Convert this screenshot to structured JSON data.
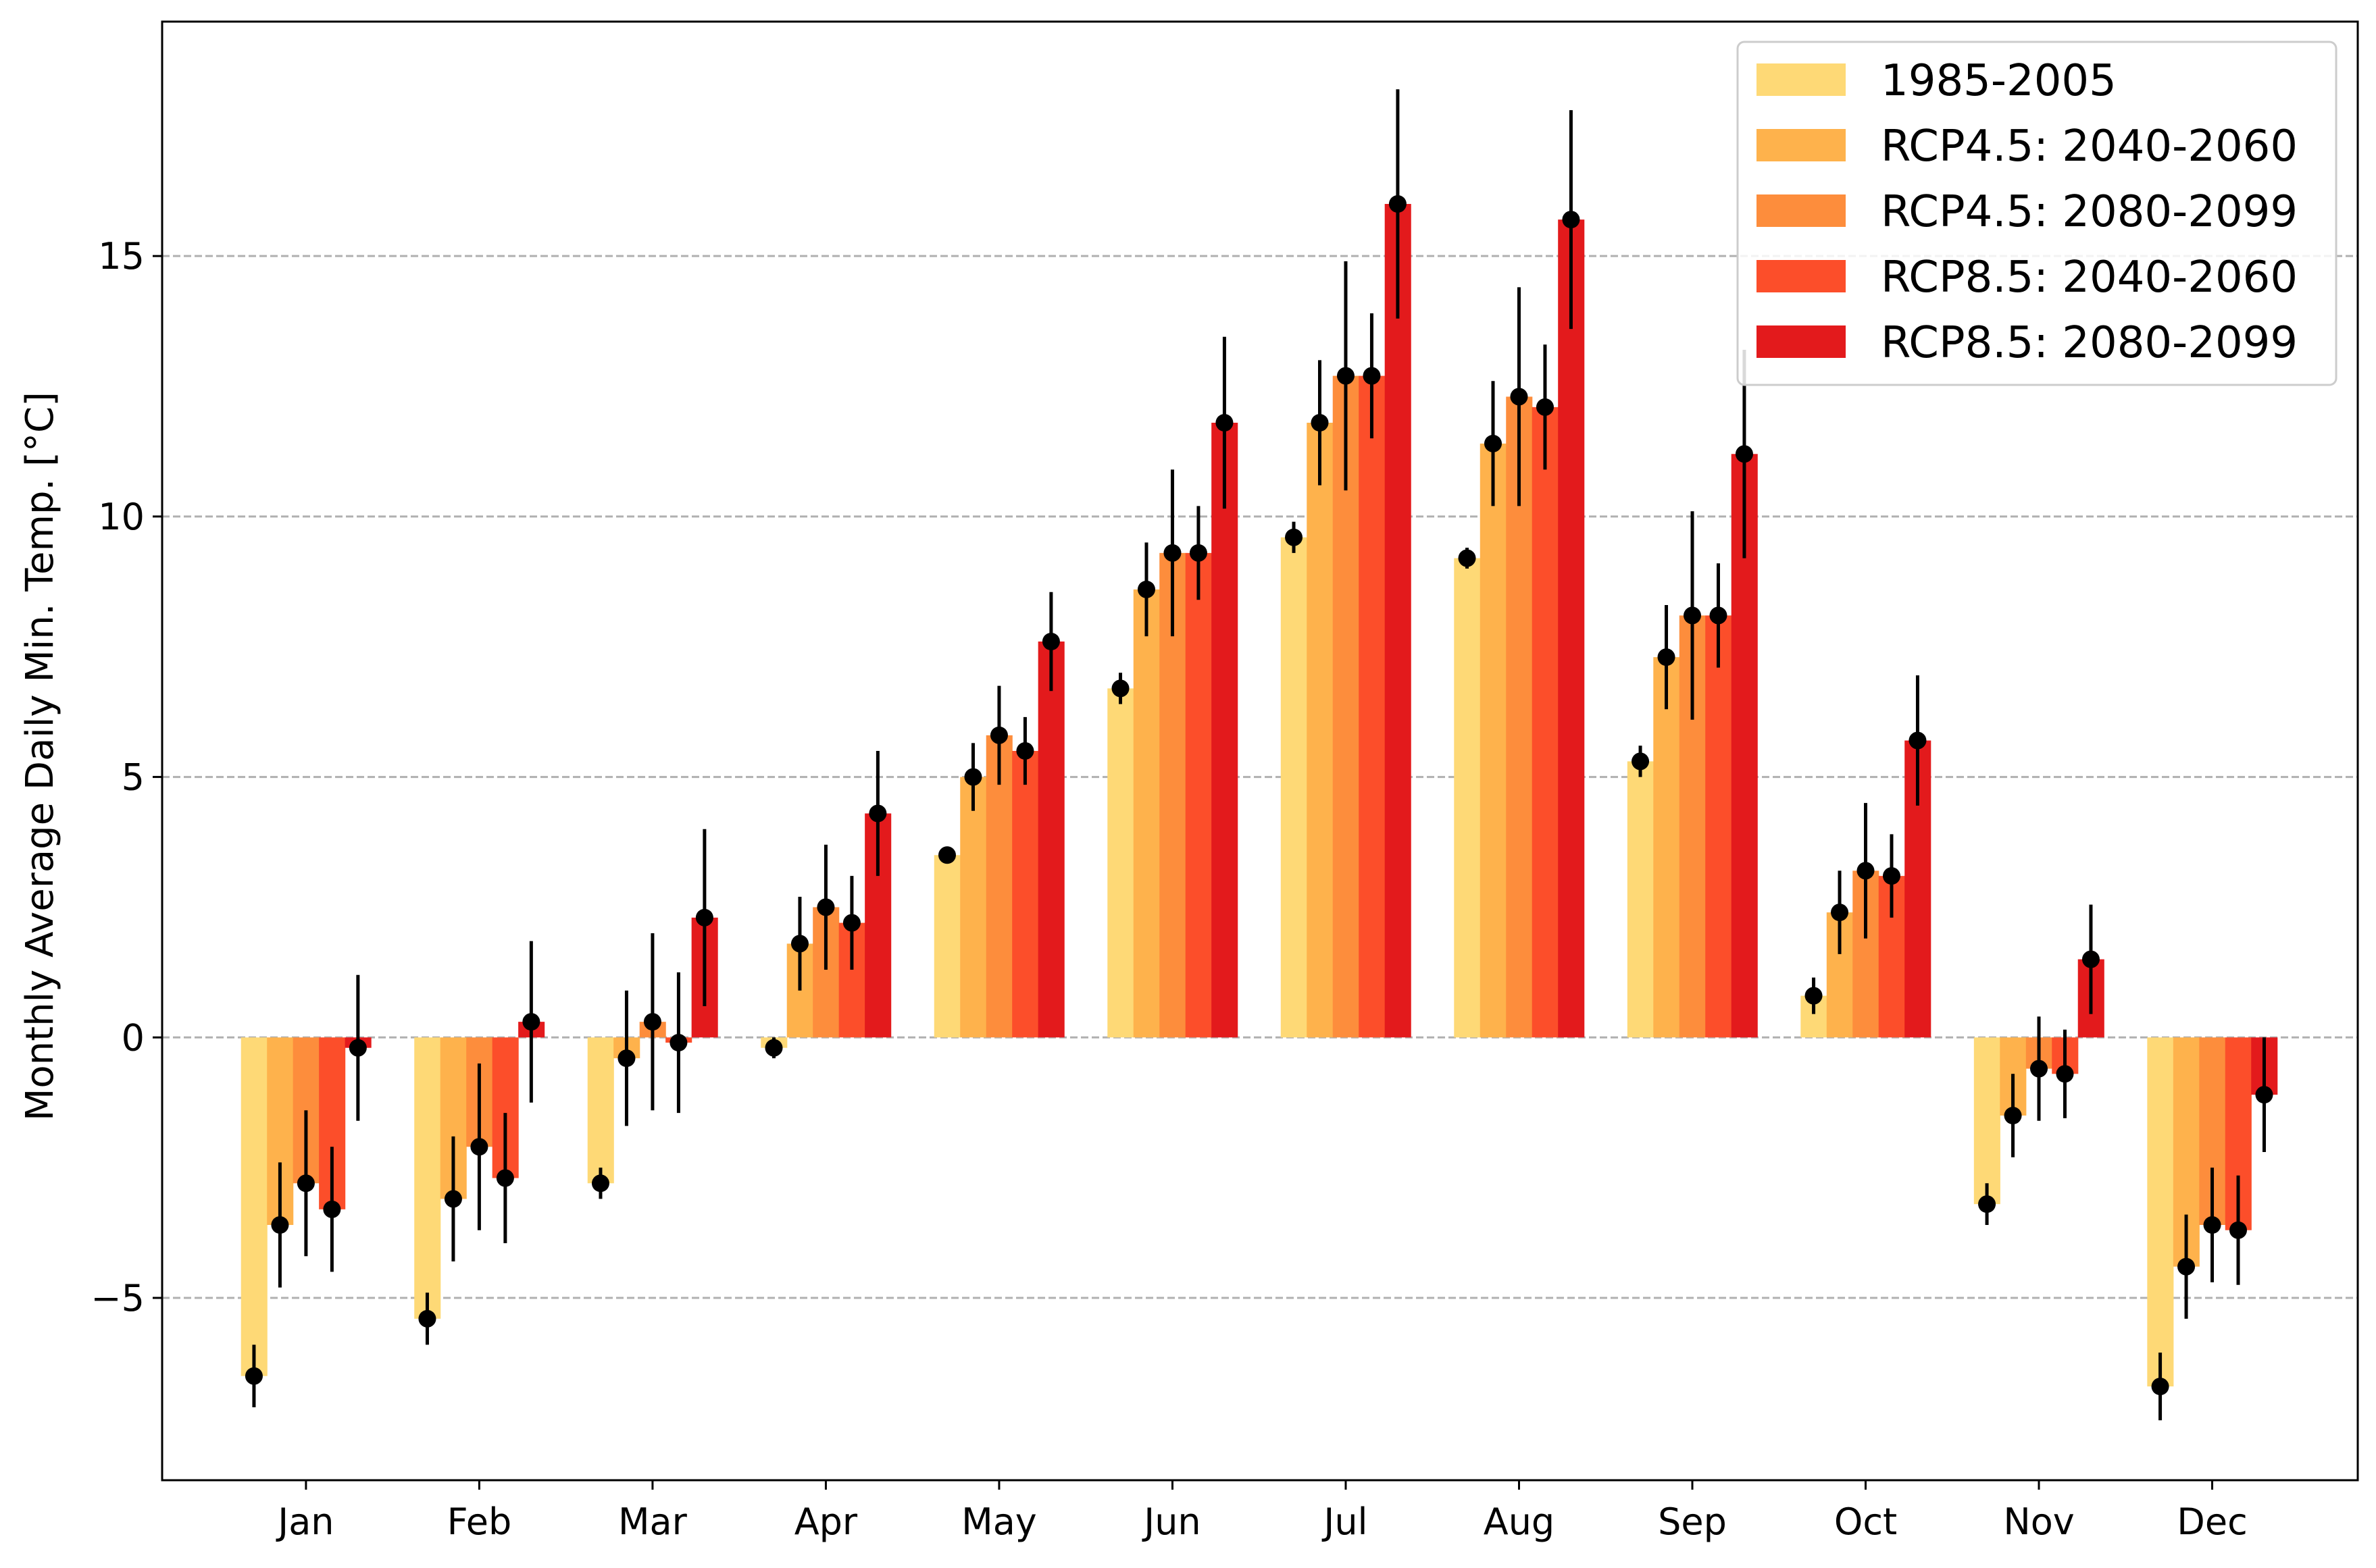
{
  "chart_data": {
    "type": "bar",
    "title": "",
    "xlabel": "",
    "ylabel": "Monthly Average Daily Min. Temp. [°C]",
    "categories": [
      "Jan",
      "Feb",
      "Mar",
      "Apr",
      "May",
      "Jun",
      "Jul",
      "Aug",
      "Sep",
      "Oct",
      "Nov",
      "Dec"
    ],
    "ylim": [
      -8.5,
      19.5
    ],
    "yticks": [
      {
        "value": -5,
        "label": "−5"
      },
      {
        "value": 0,
        "label": "0"
      },
      {
        "value": 5,
        "label": "5"
      },
      {
        "value": 10,
        "label": "10"
      },
      {
        "value": 15,
        "label": "15"
      }
    ],
    "grid": "horizontal-dashed",
    "legend_position": "top-right",
    "error_bars": true,
    "series": [
      {
        "name": "1985-2005",
        "color": "#FED976",
        "values": [
          -6.5,
          -5.4,
          -2.8,
          -0.2,
          3.5,
          6.7,
          9.6,
          9.2,
          5.3,
          0.8,
          -3.2,
          -6.7
        ],
        "errors": [
          0.6,
          0.5,
          0.3,
          0.2,
          0.1,
          0.3,
          0.3,
          0.2,
          0.3,
          0.35,
          0.4,
          0.65
        ]
      },
      {
        "name": "RCP4.5: 2040-2060",
        "color": "#FEB24C",
        "values": [
          -3.6,
          -3.1,
          -0.4,
          1.8,
          5.0,
          8.6,
          11.8,
          11.4,
          7.3,
          2.4,
          -1.5,
          -4.4
        ],
        "errors": [
          1.2,
          1.2,
          1.3,
          0.9,
          0.65,
          0.9,
          1.2,
          1.2,
          1.0,
          0.8,
          0.8,
          1.0
        ]
      },
      {
        "name": "RCP4.5: 2080-2099",
        "color": "#FD8D3C",
        "values": [
          -2.8,
          -2.1,
          0.3,
          2.5,
          5.8,
          9.3,
          12.7,
          12.3,
          8.1,
          3.2,
          -0.6,
          -3.6
        ],
        "errors": [
          1.4,
          1.6,
          1.7,
          1.2,
          0.95,
          1.6,
          2.2,
          2.1,
          2.0,
          1.3,
          1.0,
          1.1
        ]
      },
      {
        "name": "RCP8.5: 2040-2060",
        "color": "#FC4E2A",
        "values": [
          -3.3,
          -2.7,
          -0.1,
          2.2,
          5.5,
          9.3,
          12.7,
          12.1,
          8.1,
          3.1,
          -0.7,
          -3.7
        ],
        "errors": [
          1.2,
          1.25,
          1.35,
          0.9,
          0.65,
          0.9,
          1.2,
          1.2,
          1.0,
          0.8,
          0.85,
          1.05
        ]
      },
      {
        "name": "RCP8.5: 2080-2099",
        "color": "#E31A1C",
        "values": [
          -0.2,
          0.3,
          2.3,
          4.3,
          7.6,
          11.8,
          16.0,
          15.7,
          11.2,
          5.7,
          1.5,
          -1.1
        ],
        "errors": [
          1.4,
          1.55,
          1.7,
          1.2,
          0.95,
          1.65,
          2.2,
          2.1,
          2.0,
          1.25,
          1.05,
          1.1
        ]
      }
    ]
  }
}
